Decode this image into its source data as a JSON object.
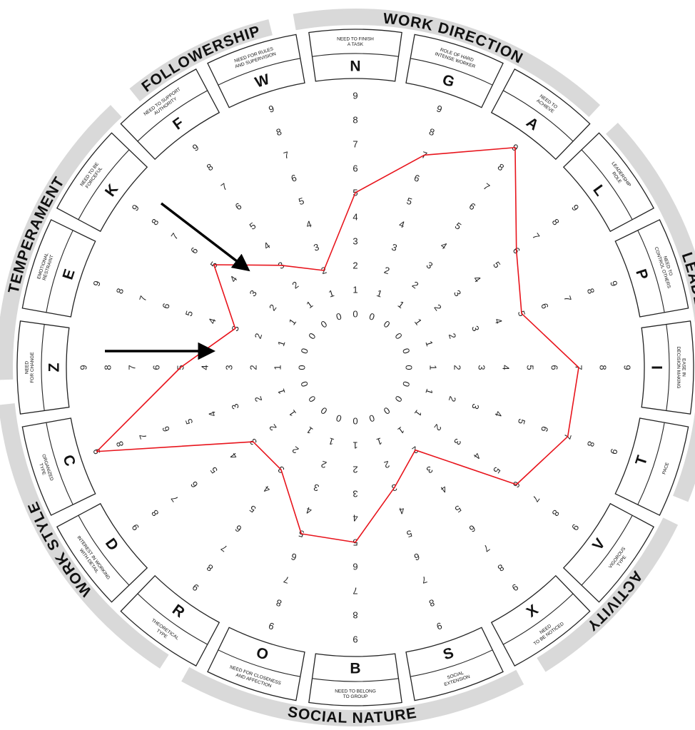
{
  "categories": [
    {
      "name": "WORK DIRECTION"
    },
    {
      "name": "LEADERSHIP"
    },
    {
      "name": "ACTIVITY"
    },
    {
      "name": "SOCIAL NATURE"
    },
    {
      "name": "WORK STYLE"
    },
    {
      "name": "TEMPERAMENT"
    },
    {
      "name": "FOLLOWERSHIP"
    }
  ],
  "axes": [
    {
      "letter": "N",
      "desc": "NEED TO FINISH|A TASK",
      "score": 5
    },
    {
      "letter": "G",
      "desc": "ROLE OF HARD|INTENSE WORKER",
      "score": 7
    },
    {
      "letter": "A",
      "desc": "NEED TO|ACHIEVE",
      "score": 9
    },
    {
      "letter": "L",
      "desc": "LEADERSHIP|ROLE",
      "score": 6
    },
    {
      "letter": "P",
      "desc": "NEED TO|CONTROL OTHERS",
      "score": 5
    },
    {
      "letter": "I",
      "desc": "EASE IN|DECISION MAKING",
      "score": 7
    },
    {
      "letter": "T",
      "desc": "PACE",
      "score": 7
    },
    {
      "letter": "V",
      "desc": "VIGOROUS|TYPE",
      "score": 6
    },
    {
      "letter": "X",
      "desc": "NEED|TO BE NOTICED",
      "score": 2
    },
    {
      "letter": "S",
      "desc": "SOCIAL|EXTENSION",
      "score": 3
    },
    {
      "letter": "B",
      "desc": "NEED TO BELONG|TO GROUP",
      "score": 5
    },
    {
      "letter": "O",
      "desc": "NEED FOR CLOSENESS|AND AFFECTION",
      "score": 5
    },
    {
      "letter": "R",
      "desc": "THEORETICAL|TYPE",
      "score": 3
    },
    {
      "letter": "D",
      "desc": "INTEREST IN WORKING|WITH DETAIL",
      "score": 3
    },
    {
      "letter": "C",
      "desc": "ORGANIZED|TYPE",
      "score": 9
    },
    {
      "letter": "Z",
      "desc": "NEED|FOR CHANGE",
      "score": 5
    },
    {
      "letter": "E",
      "desc": "EMOTIONAL|RESTRAINT",
      "score": 3
    },
    {
      "letter": "K",
      "desc": "NEED TO BE|FORCEFUL",
      "score": 5
    },
    {
      "letter": "F",
      "desc": "NEED TO SUPPORT|AUTHORITY",
      "score": 3
    },
    {
      "letter": "W",
      "desc": "NEED FOR RULES|AND SUPERVISION",
      "score": 2
    }
  ],
  "scale": [
    "0",
    "1",
    "2",
    "3",
    "4",
    "5",
    "6",
    "7",
    "8",
    "9"
  ],
  "colors": {
    "profile": "#e8141c",
    "band": "#d9d9d9",
    "outline": "#222222",
    "arrow": "#000000"
  }
}
